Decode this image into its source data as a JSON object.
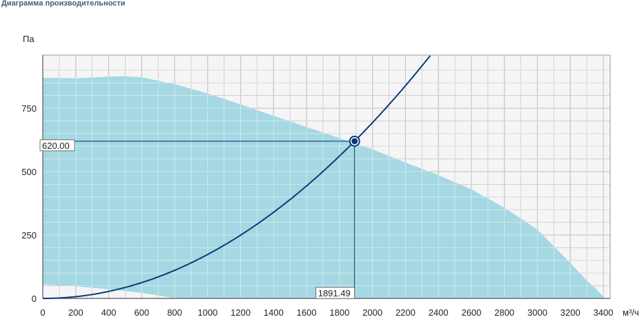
{
  "header": {
    "title": "Диаграмма производительности"
  },
  "chart_data": {
    "type": "line",
    "y_unit": "Па",
    "x_unit": "м³/ч",
    "xlim": [
      0,
      3400
    ],
    "ylim": [
      0,
      930
    ],
    "x_ticks": [
      0,
      200,
      400,
      600,
      800,
      1000,
      1200,
      1400,
      1600,
      1800,
      2000,
      2200,
      2400,
      2600,
      2800,
      3000,
      3200,
      3400
    ],
    "y_ticks": [
      0,
      250,
      500,
      750
    ],
    "x_tick_labels": [
      "0",
      "200",
      "400",
      "600",
      "800",
      "1000",
      "1200",
      "1400",
      "1600",
      "1800",
      "2000",
      "2200",
      "2400",
      "2600",
      "2800",
      "3000",
      "3200",
      "3400"
    ],
    "y_tick_labels": [
      "0",
      "250",
      "500",
      "750"
    ],
    "grid": true,
    "operating_range": {
      "upper": [
        [
          0,
          870
        ],
        [
          200,
          868
        ],
        [
          400,
          874
        ],
        [
          500,
          876
        ],
        [
          600,
          872
        ],
        [
          800,
          845
        ],
        [
          1000,
          808
        ],
        [
          1200,
          765
        ],
        [
          1400,
          720
        ],
        [
          1600,
          676
        ],
        [
          1800,
          632
        ],
        [
          2000,
          588
        ],
        [
          2200,
          536
        ],
        [
          2400,
          486
        ],
        [
          2600,
          430
        ],
        [
          2800,
          358
        ],
        [
          3000,
          272
        ],
        [
          3200,
          140
        ],
        [
          3300,
          70
        ],
        [
          3360,
          35
        ],
        [
          3410,
          0
        ]
      ],
      "lower": [
        [
          0,
          55
        ],
        [
          200,
          48
        ],
        [
          400,
          36
        ],
        [
          600,
          22
        ],
        [
          700,
          12
        ],
        [
          800,
          0
        ]
      ],
      "color": "#a5d8e2"
    },
    "system_curve": {
      "x": [
        0,
        200,
        400,
        600,
        800,
        1000,
        1200,
        1400,
        1600,
        1800,
        1891.49,
        2000,
        2200,
        2350
      ],
      "y": [
        0,
        7,
        28,
        62,
        111,
        173,
        249,
        339,
        443,
        561,
        620,
        693,
        838,
        956
      ],
      "color": "#0a3a7a"
    },
    "operating_point": {
      "x": 1891.49,
      "y": 620.0,
      "x_label": "1891.49",
      "y_label": "620.00"
    }
  }
}
